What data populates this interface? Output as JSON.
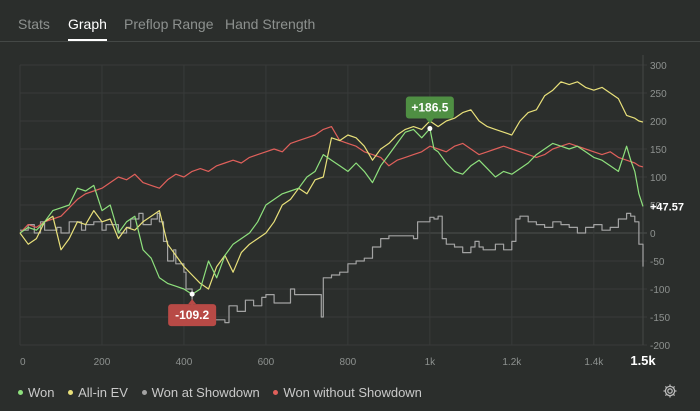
{
  "tabs": [
    {
      "label": "Stats",
      "active": false
    },
    {
      "label": "Graph",
      "active": true
    },
    {
      "label": "Preflop Range",
      "active": false
    },
    {
      "label": "Hand Strength",
      "active": false
    }
  ],
  "chart_data": {
    "type": "line",
    "xlim": [
      0,
      1520
    ],
    "ylim": [
      -200,
      300
    ],
    "x_ticks": [
      {
        "value": 0,
        "label": "0"
      },
      {
        "value": 200,
        "label": "200"
      },
      {
        "value": 400,
        "label": "400"
      },
      {
        "value": 600,
        "label": "600"
      },
      {
        "value": 800,
        "label": "800"
      },
      {
        "value": 1000,
        "label": "1k"
      },
      {
        "value": 1200,
        "label": "1.2k"
      },
      {
        "value": 1400,
        "label": "1.4k"
      },
      {
        "value": 1520,
        "label": "1.5k",
        "emphasis": true
      }
    ],
    "y_ticks": [
      300,
      250,
      200,
      150,
      100,
      50,
      0,
      -50,
      -100,
      -150,
      -200
    ],
    "series": [
      {
        "name": "Won at Showdown",
        "color": "#a3a3a3",
        "step": true,
        "x": [
          0,
          20,
          35,
          50,
          60,
          90,
          100,
          120,
          150,
          160,
          180,
          200,
          210,
          240,
          260,
          270,
          290,
          300,
          320,
          335,
          340,
          350,
          360,
          375,
          380,
          400,
          405,
          420,
          425,
          440,
          460,
          500,
          510,
          530,
          550,
          570,
          590,
          600,
          620,
          660,
          670,
          700,
          735,
          740,
          760,
          780,
          800,
          820,
          840,
          860,
          880,
          900,
          960,
          970,
          990,
          1000,
          1010,
          1020,
          1030,
          1040,
          1060,
          1080,
          1100,
          1110,
          1120,
          1130,
          1160,
          1180,
          1200,
          1210,
          1220,
          1240,
          1260,
          1280,
          1300,
          1320,
          1340,
          1360,
          1380,
          1400,
          1420,
          1440,
          1460,
          1480,
          1490,
          1500,
          1510,
          1520
        ],
        "y": [
          5,
          15,
          0,
          20,
          5,
          10,
          0,
          20,
          5,
          15,
          20,
          5,
          15,
          0,
          10,
          25,
          35,
          15,
          25,
          35,
          20,
          -15,
          -50,
          -30,
          -55,
          -70,
          -100,
          -160,
          -165,
          -160,
          -155,
          -160,
          -130,
          -140,
          -120,
          -130,
          -115,
          -110,
          -125,
          -100,
          -110,
          -110,
          -150,
          -80,
          -75,
          -70,
          -55,
          -50,
          -45,
          -25,
          -10,
          -5,
          -10,
          20,
          20,
          28,
          25,
          30,
          -10,
          -20,
          -25,
          -35,
          -25,
          -15,
          -25,
          -30,
          -20,
          -30,
          -15,
          25,
          30,
          20,
          15,
          10,
          20,
          15,
          10,
          0,
          10,
          15,
          5,
          10,
          25,
          35,
          30,
          20,
          -20,
          -60
        ]
      },
      {
        "name": "Won without Showdown",
        "color": "#e0605b",
        "x": [
          0,
          20,
          40,
          60,
          80,
          100,
          120,
          140,
          160,
          180,
          200,
          220,
          240,
          260,
          280,
          300,
          320,
          340,
          360,
          380,
          400,
          420,
          440,
          460,
          480,
          500,
          520,
          540,
          560,
          580,
          600,
          620,
          640,
          660,
          680,
          700,
          720,
          740,
          760,
          780,
          800,
          820,
          840,
          860,
          880,
          900,
          920,
          940,
          960,
          980,
          1000,
          1020,
          1040,
          1060,
          1080,
          1100,
          1120,
          1140,
          1160,
          1180,
          1200,
          1220,
          1240,
          1260,
          1280,
          1300,
          1320,
          1340,
          1360,
          1380,
          1400,
          1420,
          1440,
          1460,
          1480,
          1500,
          1510,
          1520
        ],
        "y": [
          0,
          15,
          10,
          20,
          25,
          30,
          45,
          60,
          70,
          75,
          80,
          90,
          100,
          95,
          105,
          90,
          85,
          80,
          95,
          105,
          100,
          110,
          115,
          110,
          120,
          125,
          130,
          125,
          135,
          140,
          145,
          150,
          145,
          160,
          165,
          170,
          175,
          185,
          190,
          165,
          160,
          155,
          145,
          140,
          135,
          120,
          130,
          135,
          140,
          145,
          155,
          150,
          145,
          155,
          160,
          150,
          140,
          145,
          150,
          155,
          150,
          145,
          140,
          135,
          140,
          150,
          155,
          160,
          155,
          150,
          145,
          140,
          145,
          135,
          130,
          125,
          120,
          118
        ]
      },
      {
        "name": "All-in EV",
        "color": "#e8e07a",
        "x": [
          0,
          20,
          40,
          60,
          80,
          100,
          120,
          140,
          160,
          180,
          200,
          220,
          240,
          260,
          280,
          300,
          320,
          340,
          360,
          380,
          400,
          420,
          440,
          460,
          480,
          500,
          520,
          540,
          560,
          580,
          600,
          620,
          640,
          660,
          680,
          700,
          720,
          740,
          760,
          780,
          800,
          820,
          840,
          860,
          880,
          900,
          920,
          940,
          960,
          980,
          1000,
          1020,
          1040,
          1060,
          1080,
          1100,
          1120,
          1140,
          1160,
          1180,
          1200,
          1220,
          1240,
          1260,
          1280,
          1300,
          1320,
          1340,
          1360,
          1380,
          1400,
          1420,
          1440,
          1460,
          1480,
          1500,
          1510,
          1520
        ],
        "y": [
          0,
          -20,
          -10,
          20,
          30,
          -30,
          -10,
          20,
          15,
          40,
          20,
          25,
          -10,
          10,
          5,
          20,
          30,
          40,
          -20,
          -40,
          -60,
          -75,
          -90,
          -100,
          -60,
          -40,
          -70,
          -35,
          -20,
          -10,
          0,
          20,
          50,
          60,
          80,
          70,
          95,
          100,
          170,
          165,
          175,
          170,
          155,
          130,
          150,
          160,
          175,
          185,
          190,
          185,
          200,
          190,
          200,
          205,
          215,
          220,
          200,
          190,
          185,
          180,
          175,
          200,
          215,
          220,
          245,
          255,
          270,
          265,
          270,
          260,
          255,
          260,
          250,
          240,
          210,
          205,
          200,
          198
        ]
      },
      {
        "name": "Won",
        "color": "#8ee07d",
        "x": [
          0,
          20,
          40,
          60,
          80,
          100,
          120,
          140,
          160,
          180,
          200,
          220,
          240,
          260,
          280,
          300,
          320,
          340,
          360,
          380,
          400,
          420,
          440,
          460,
          480,
          500,
          520,
          540,
          560,
          580,
          600,
          620,
          640,
          660,
          680,
          700,
          720,
          740,
          760,
          780,
          800,
          820,
          840,
          860,
          880,
          900,
          920,
          940,
          960,
          980,
          1000,
          1010,
          1020,
          1040,
          1060,
          1080,
          1100,
          1120,
          1140,
          1160,
          1180,
          1200,
          1220,
          1240,
          1260,
          1280,
          1300,
          1320,
          1340,
          1360,
          1380,
          1400,
          1420,
          1440,
          1460,
          1480,
          1490,
          1500,
          1510,
          1520
        ],
        "y": [
          0,
          10,
          5,
          20,
          40,
          45,
          50,
          80,
          75,
          85,
          40,
          50,
          0,
          20,
          30,
          -30,
          -45,
          -80,
          -90,
          -95,
          -100,
          -109.2,
          -100,
          -50,
          -80,
          -40,
          -20,
          -10,
          0,
          20,
          50,
          60,
          70,
          75,
          80,
          100,
          110,
          140,
          130,
          120,
          110,
          125,
          110,
          90,
          120,
          140,
          160,
          180,
          185,
          170,
          186.5,
          150,
          145,
          125,
          110,
          105,
          120,
          130,
          115,
          100,
          110,
          105,
          115,
          125,
          140,
          150,
          160,
          155,
          150,
          155,
          145,
          135,
          130,
          120,
          110,
          155,
          130,
          110,
          70,
          47.57
        ]
      }
    ],
    "annotations": [
      {
        "x": 420,
        "y": -109.2,
        "label": "-109.2",
        "color": "#b84a46",
        "position": "below"
      },
      {
        "x": 1000,
        "y": 186.5,
        "label": "+186.5",
        "color": "#4f8f43",
        "position": "above"
      }
    ],
    "end_label": {
      "y": 47.57,
      "label": "+47.57"
    },
    "legend": [
      {
        "label": "Won",
        "color": "#8ee07d"
      },
      {
        "label": "All-in EV",
        "color": "#e8e07a"
      },
      {
        "label": "Won at Showdown",
        "color": "#a3a3a3"
      },
      {
        "label": "Won without Showdown",
        "color": "#e0605b"
      }
    ]
  }
}
